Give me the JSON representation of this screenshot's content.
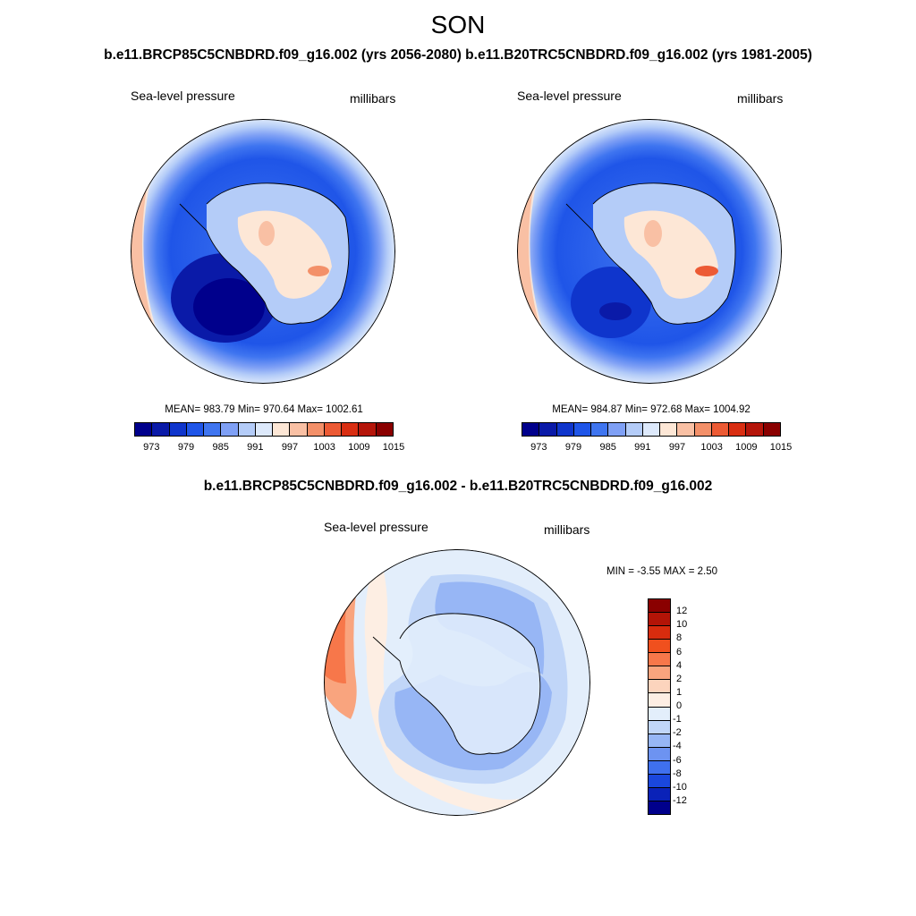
{
  "figure": {
    "season": "SON",
    "pair_title": "b.e11.BRCP85C5CNBDRD.f09_g16.002 (yrs 2056-2080)   b.e11.B20TRC5CNBDRD.f09_g16.002 (yrs 1981-2005)",
    "diff_title": "b.e11.BRCP85C5CNBDRD.f09_g16.002 - b.e11.B20TRC5CNBDRD.f09_g16.002"
  },
  "panels": [
    {
      "variable": "Sea-level pressure",
      "units": "millibars",
      "stats": "MEAN= 983.79  Min= 970.64  Max= 1002.61",
      "colorbar_ticks": [
        "973",
        "979",
        "985",
        "991",
        "997",
        "1003",
        "1009",
        "1015"
      ]
    },
    {
      "variable": "Sea-level pressure",
      "units": "millibars",
      "stats": "MEAN= 984.87  Min= 972.68  Max= 1004.92",
      "colorbar_ticks": [
        "973",
        "979",
        "985",
        "991",
        "997",
        "1003",
        "1009",
        "1015"
      ]
    }
  ],
  "difference": {
    "variable": "Sea-level pressure",
    "units": "millibars",
    "stats": "MIN =  -3.55 MAX =   2.50",
    "colorbar_ticks": [
      "12",
      "10",
      "8",
      "6",
      "4",
      "2",
      "1",
      "0",
      "-1",
      "-2",
      "-4",
      "-6",
      "-8",
      "-10",
      "-12"
    ]
  },
  "colors": {
    "abs_scale": [
      "#00008c",
      "#0a1aa8",
      "#0f35cc",
      "#1f55e8",
      "#3f75f0",
      "#7fa0f5",
      "#b4ccf8",
      "#dde9fb",
      "#fde7d6",
      "#f9c0a4",
      "#f39069",
      "#ec5a34",
      "#d92e12",
      "#b5150a",
      "#8a0000"
    ],
    "diff_scale": [
      "#8a0000",
      "#b31407",
      "#d82c0e",
      "#f0501e",
      "#f7774a",
      "#f9a47e",
      "#fcd4bd",
      "#fdeee3",
      "#e3eefb",
      "#c1d6f8",
      "#97b6f5",
      "#6d93f1",
      "#3f70ee",
      "#1a47dd",
      "#0a22b8",
      "#00008c"
    ],
    "coastline": "#000000"
  }
}
